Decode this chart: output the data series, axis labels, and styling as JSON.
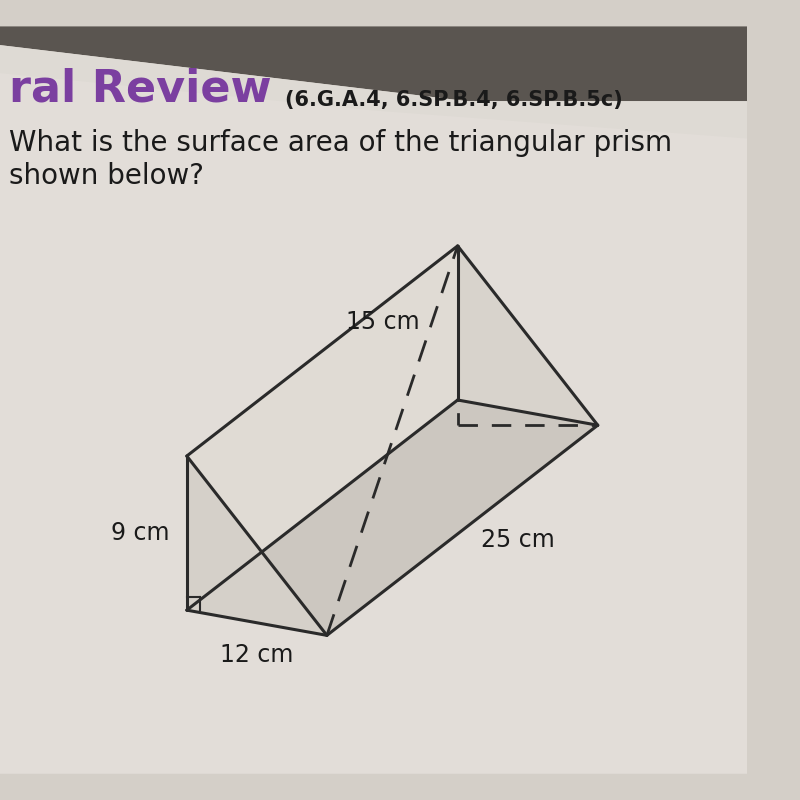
{
  "bg_color": "#d4cfc8",
  "paper_color": "#e8e4df",
  "header_text": "ral Review",
  "header_subtext": "(6.G.A.4, 6.SP.B.4, 6.SP.B.5c)",
  "question_line1": "What is the surface area of the triangular prism",
  "question_line2": "shown below?",
  "header_color": "#7B3FA0",
  "subtext_color": "#1a1a1a",
  "text_color": "#1a1a1a",
  "header_fontsize": 32,
  "subtext_fontsize": 15,
  "question_fontsize": 20,
  "label_fontsize": 17,
  "dim_9cm": "9 cm",
  "dim_12cm": "12 cm",
  "dim_15cm": "15 cm",
  "dim_25cm": "25 cm",
  "prism_face_color": "#e0dbd4",
  "prism_edge_color": "#2a2a2a",
  "prism_linewidth": 2.2,
  "dashed_linewidth": 2.0,
  "top_dark_color": "#8a8580",
  "top_light_color": "#c8c3bc"
}
